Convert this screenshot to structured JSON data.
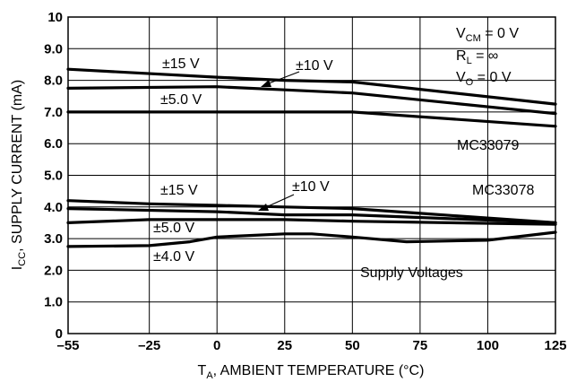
{
  "chart_data": {
    "type": "line",
    "xlabel": "T",
    "xlabel_sub": "A",
    "xlabel_rest": ", AMBIENT TEMPERATURE (°C)",
    "ylabel": "I",
    "ylabel_sub": "CC",
    "ylabel_rest": ", SUPPLY CURRENT (mA)",
    "xlim": [
      -55,
      125
    ],
    "ylim": [
      0,
      10
    ],
    "x_ticks": [
      -55,
      -25,
      0,
      25,
      50,
      75,
      100,
      125
    ],
    "x_tick_labels": [
      "–55",
      "–25",
      "0",
      "25",
      "50",
      "75",
      "100",
      "125"
    ],
    "y_ticks": [
      0,
      1,
      2,
      3,
      4,
      5,
      6,
      7,
      8,
      9,
      10
    ],
    "y_tick_labels": [
      "0",
      "1.0",
      "2.0",
      "3.0",
      "4.0",
      "5.0",
      "6.0",
      "7.0",
      "8.0",
      "9.0",
      "10"
    ],
    "grid": true,
    "conditions": {
      "vcm": {
        "main": "V",
        "sub": "CM",
        "rest": " = 0 V"
      },
      "rl": {
        "main": "R",
        "sub": "L",
        "rest": " = ∞"
      },
      "vo": {
        "main": "V",
        "sub": "O",
        "rest": " = 0 V"
      }
    },
    "device_labels": {
      "mc33079": "MC33079",
      "mc33078": "MC33078",
      "supply_voltages": "Supply Voltages"
    },
    "curve_labels": {
      "mc33079_15v": "±15 V",
      "mc33079_10v": "±10 V",
      "mc33079_5v": "±5.0 V",
      "mc33078_15v": "±15 V",
      "mc33078_10v": "±10 V",
      "mc33078_5v": "±5.0 V",
      "mc33078_4v": "±4.0 V"
    },
    "series": [
      {
        "x": [
          -55,
          0,
          25,
          50,
          125
        ],
        "values": [
          8.35,
          8.1,
          8.0,
          7.95,
          7.25
        ]
      },
      {
        "x": [
          -55,
          0,
          25,
          50,
          125
        ],
        "values": [
          7.75,
          7.8,
          7.7,
          7.6,
          6.95
        ]
      },
      {
        "x": [
          -55,
          0,
          25,
          50,
          125
        ],
        "values": [
          7.0,
          7.0,
          7.0,
          7.0,
          6.55
        ]
      },
      {
        "x": [
          -55,
          -25,
          0,
          25,
          50,
          75,
          125
        ],
        "values": [
          4.2,
          4.1,
          4.05,
          4.0,
          3.95,
          3.8,
          3.5
        ]
      },
      {
        "x": [
          -55,
          0,
          25,
          50,
          125
        ],
        "values": [
          3.95,
          3.85,
          3.75,
          3.75,
          3.5
        ]
      },
      {
        "x": [
          -55,
          -25,
          0,
          25,
          50,
          125
        ],
        "values": [
          3.5,
          3.6,
          3.6,
          3.6,
          3.55,
          3.45
        ]
      },
      {
        "x": [
          -55,
          -25,
          -10,
          0,
          25,
          35,
          50,
          70,
          100,
          125
        ],
        "values": [
          2.75,
          2.78,
          2.9,
          3.05,
          3.15,
          3.15,
          3.05,
          2.9,
          2.95,
          3.2
        ]
      }
    ]
  }
}
